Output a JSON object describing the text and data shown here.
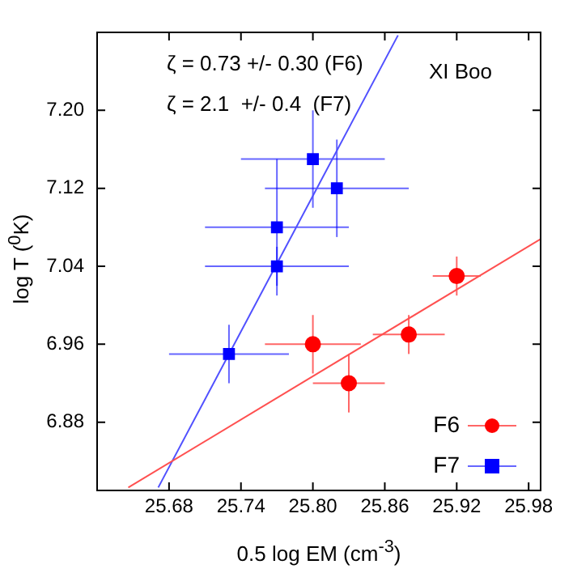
{
  "chart_data": {
    "type": "scatter",
    "xlabel": "0.5 log EM (cm$^{-3}$)",
    "ylabel": "log T ($^{0}$K)",
    "xlim": [
      25.62,
      25.99
    ],
    "ylim": [
      6.81,
      7.28
    ],
    "xticks": [
      {
        "value": 25.68,
        "label": "25.68"
      },
      {
        "value": 25.74,
        "label": "25.74"
      },
      {
        "value": 25.8,
        "label": "25.80"
      },
      {
        "value": 25.86,
        "label": "25.86"
      },
      {
        "value": 25.92,
        "label": "25.92"
      },
      {
        "value": 25.98,
        "label": "25.98"
      }
    ],
    "yticks": [
      6.88,
      6.96,
      7.04,
      7.12,
      {
        "value": 7.2,
        "label": "7.20"
      }
    ],
    "legend": "bottom right",
    "grid": false,
    "annotations": [
      "ζ = 0.73 +/- 0.30 (F6)",
      "ζ = 2.1  +/- 0.4  (F7)",
      "XI Boo"
    ],
    "series": [
      {
        "name": "F6",
        "type": "scatter",
        "marker": "circle",
        "color": "#ff0000",
        "x": [
          25.92,
          25.8,
          25.83,
          25.88
        ],
        "values": [
          7.03,
          6.96,
          6.92,
          6.97
        ],
        "errors": [
          0.02,
          0.03,
          0.03,
          0.02
        ],
        "xerrors": [
          0.02,
          0.04,
          0.03,
          0.03
        ]
      },
      {
        "name": "F7",
        "type": "scatter",
        "marker": "square",
        "color": "#0000ff",
        "x": [
          25.8,
          25.82,
          25.77,
          25.77,
          25.73
        ],
        "values": [
          7.15,
          7.12,
          7.08,
          7.04,
          6.95
        ],
        "errors": [
          0.05,
          0.05,
          0.07,
          0.02,
          0.03
        ],
        "xerrors": [
          0.06,
          0.06,
          0.06,
          0.06,
          0.05
        ]
      },
      {
        "type": "line",
        "color": "#ff5050",
        "x": [
          25.646,
          25.99
        ],
        "values": [
          6.813,
          7.068
        ]
      },
      {
        "type": "line",
        "color": "#5050ff",
        "x": [
          25.671,
          25.871
        ],
        "values": [
          6.813,
          7.277
        ]
      }
    ]
  }
}
